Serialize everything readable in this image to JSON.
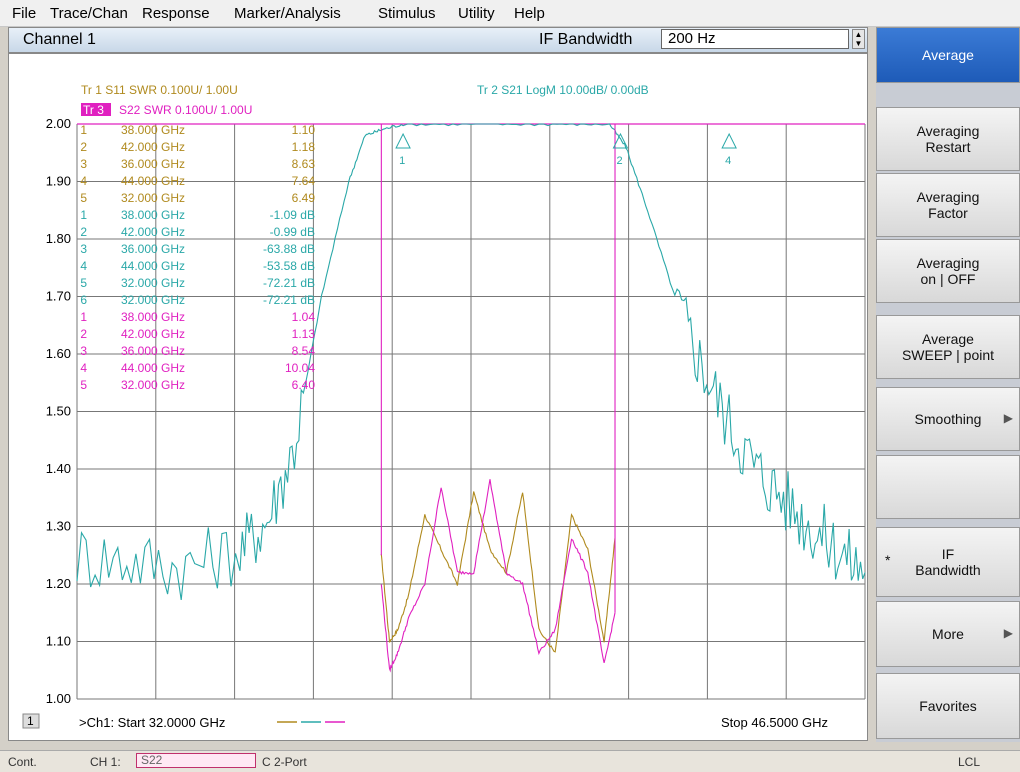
{
  "menu": [
    "File",
    "Trace/Chan",
    "Response",
    "Marker/Analysis",
    "Stimulus",
    "Utility",
    "Help"
  ],
  "channel": {
    "title": "Channel 1",
    "if_bandwidth_label": "IF Bandwidth",
    "if_bandwidth_value": "200 Hz"
  },
  "softkeys": {
    "average": "Average",
    "averaging_restart": [
      "Averaging",
      "Restart"
    ],
    "averaging_factor": [
      "Averaging",
      "Factor"
    ],
    "averaging_onoff": [
      "Averaging",
      "on | OFF"
    ],
    "average_mode": [
      "Average",
      "SWEEP | point"
    ],
    "smoothing": "Smoothing",
    "if_bandwidth": [
      "IF",
      "Bandwidth"
    ],
    "more": "More",
    "favorites": "Favorites",
    "star": "*",
    "arrow": "▶"
  },
  "traces": {
    "tr1": "Tr 1  S11 SWR 0.100U/  1.00U",
    "tr3_tag": "Tr 3",
    "tr3": "S22 SWR 0.100U/  1.00U",
    "tr2": "Tr 2  S21 LogM 10.00dB/  0.00dB"
  },
  "y_ticks": [
    "2.00",
    "1.90",
    "1.80",
    "1.70",
    "1.60",
    "1.50",
    "1.40",
    "1.30",
    "1.20",
    "1.10",
    "1.00"
  ],
  "marker_tables": {
    "s11": [
      {
        "n": "1",
        "freq": "38.000 GHz",
        "val": "1.10",
        "active": false
      },
      {
        "n": "2",
        "freq": "42.000 GHz",
        "val": "1.18",
        "active": false
      },
      {
        "n": "3",
        "freq": "36.000 GHz",
        "val": "8.63",
        "active": false
      },
      {
        "n": "4",
        "freq": "44.000 GHz",
        "val": "7.64",
        "active": false
      },
      {
        "n": "5",
        "freq": "32.000 GHz",
        "val": "6.49",
        "active": false
      }
    ],
    "s21": [
      {
        "n": "1",
        "freq": "38.000 GHz",
        "val": "-1.09 dB",
        "active": false
      },
      {
        "n": "2",
        "freq": "42.000 GHz",
        "val": "-0.99 dB",
        "active": false
      },
      {
        "n": "3",
        "freq": "36.000 GHz",
        "val": "-63.88 dB",
        "active": false
      },
      {
        "n": "4",
        "freq": "44.000 GHz",
        "val": "-53.58 dB",
        "active": false
      },
      {
        "n": "5",
        "freq": "32.000 GHz",
        "val": "-72.21 dB",
        "active": false
      },
      {
        "n": "6",
        "freq": "32.000 GHz",
        "val": "-72.21 dB",
        "active": false
      }
    ],
    "s22": [
      {
        "n": "1",
        "freq": "38.000 GHz",
        "val": "1.04",
        "active": false
      },
      {
        "n": "2",
        "freq": "42.000 GHz",
        "val": "1.13",
        "active": false
      },
      {
        "n": "3",
        "freq": "36.000 GHz",
        "val": "8.54",
        "active": false
      },
      {
        "n": "4",
        "freq": "44.000 GHz",
        "val": "10.04",
        "active": false
      },
      {
        "n": "5",
        "freq": "32.000 GHz",
        "val": "6.40",
        "active": false
      }
    ]
  },
  "footer": {
    "channel_num": "1",
    "start": ">Ch1: Start  32.0000 GHz",
    "stop": "Stop  46.5000 GHz"
  },
  "status": {
    "cont": "Cont.",
    "ch1": "CH 1:",
    "param": "S22",
    "port": "C  2-Port",
    "lcl": "LCL"
  },
  "colors": {
    "s11": "#b08a1e",
    "s21": "#2aa8a8",
    "s22": "#e020c0",
    "marker_cyan": "#2aa8a8"
  },
  "chart_data": {
    "type": "line",
    "x_range_ghz": [
      32.0,
      46.5
    ],
    "y_range": [
      1.0,
      2.0
    ],
    "series": [
      {
        "name": "S11 SWR",
        "color": "#b08a1e",
        "x": [
          37.6,
          37.75,
          37.9,
          38.1,
          38.4,
          38.7,
          39.0,
          39.3,
          39.6,
          39.9,
          40.2,
          40.5,
          40.8,
          41.1,
          41.4,
          41.7,
          41.9
        ],
        "y": [
          1.25,
          1.1,
          1.12,
          1.18,
          1.32,
          1.26,
          1.2,
          1.36,
          1.26,
          1.22,
          1.36,
          1.12,
          1.08,
          1.32,
          1.26,
          1.1,
          1.28
        ]
      },
      {
        "name": "S21 LogM",
        "color": "#2aa8a8",
        "x": [
          32.0,
          33.0,
          34.0,
          35.0,
          35.5,
          36.0,
          36.5,
          37.0,
          37.3,
          37.6,
          38.0,
          39.0,
          40.0,
          41.0,
          41.8,
          42.1,
          42.5,
          43.0,
          43.5,
          44.0,
          44.5,
          45.0,
          45.5,
          46.0,
          46.5
        ],
        "y": [
          1.25,
          1.24,
          1.23,
          1.26,
          1.31,
          1.44,
          1.7,
          1.9,
          1.98,
          1.99,
          2.0,
          2.0,
          2.0,
          2.0,
          2.0,
          1.96,
          1.85,
          1.7,
          1.58,
          1.48,
          1.4,
          1.35,
          1.3,
          1.26,
          1.22
        ]
      },
      {
        "name": "S22 SWR",
        "color": "#e020c0",
        "x": [
          37.6,
          37.75,
          37.9,
          38.1,
          38.4,
          38.7,
          39.0,
          39.3,
          39.6,
          39.9,
          40.2,
          40.5,
          40.8,
          41.1,
          41.4,
          41.7,
          41.9
        ],
        "y": [
          1.2,
          1.05,
          1.08,
          1.14,
          1.2,
          1.37,
          1.22,
          1.22,
          1.38,
          1.22,
          1.2,
          1.08,
          1.12,
          1.28,
          1.22,
          1.06,
          1.15
        ]
      }
    ],
    "markers_s21": [
      {
        "label": "1",
        "x": 38.0
      },
      {
        "label": "2",
        "x": 42.0
      },
      {
        "label": "4",
        "x": 44.0
      }
    ],
    "grid": true
  }
}
